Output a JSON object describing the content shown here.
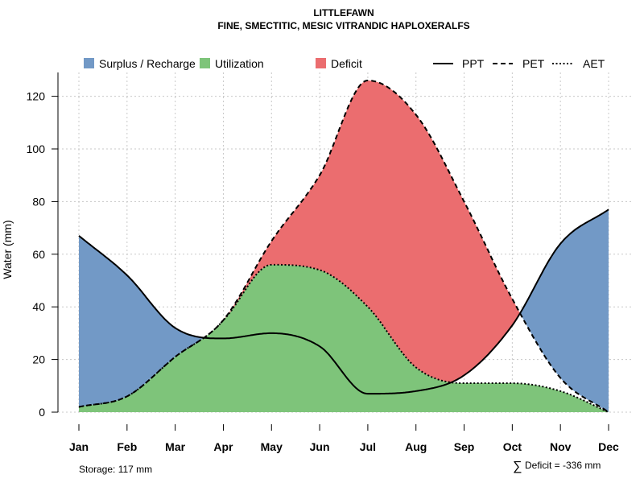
{
  "chart_data": {
    "type": "area",
    "title": "LITTLEFAWN",
    "subtitle": "FINE, SMECTITIC, MESIC VITRANDIC HAPLOXERALFS",
    "xlabel": "",
    "ylabel": "Water (mm)",
    "ylim": [
      0,
      128
    ],
    "yticks": [
      0,
      20,
      40,
      60,
      80,
      100,
      120
    ],
    "grid": true,
    "legend_position": "top",
    "categories": [
      "Jan",
      "Feb",
      "Mar",
      "Apr",
      "May",
      "Jun",
      "Jul",
      "Aug",
      "Sep",
      "Oct",
      "Nov",
      "Dec"
    ],
    "series": [
      {
        "name": "PPT",
        "style": "solid",
        "values": [
          67,
          52,
          32,
          28,
          30,
          25,
          7,
          8,
          14,
          33,
          64,
          77
        ]
      },
      {
        "name": "PET",
        "style": "dashed",
        "values": [
          2,
          6,
          21,
          35,
          65,
          90,
          126,
          113,
          80,
          43,
          13,
          0
        ]
      },
      {
        "name": "AET",
        "style": "dotted",
        "values": [
          2,
          6,
          21,
          35,
          56,
          54,
          40,
          17,
          11,
          11,
          8,
          0
        ]
      }
    ],
    "area_categories": [
      {
        "name": "Surplus / Recharge",
        "color": "#7299c6"
      },
      {
        "name": "Utilization",
        "color": "#7ec47a"
      },
      {
        "name": "Deficit",
        "color": "#eb6d6f"
      }
    ],
    "annotations": {
      "storage": "Storage: 117 mm",
      "deficit_symbol": "∑",
      "deficit": "Deficit = -336 mm"
    }
  }
}
